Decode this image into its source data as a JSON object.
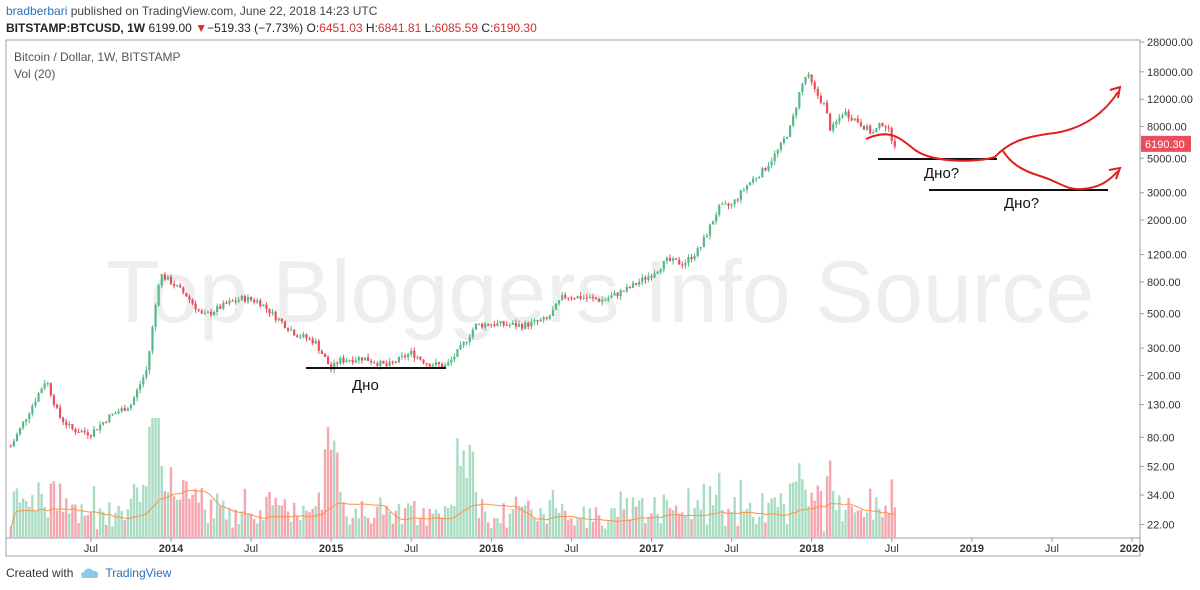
{
  "header": {
    "author": "bradberbari",
    "published": " published on TradingView.com, June 22, 2018 14:23 UTC",
    "symbol": "BITSTAMP:BTCUSD, 1W",
    "price": "6199.00",
    "change": "−519.33 (−7.73%)",
    "o_label": "O:",
    "o": "6451.03",
    "h_label": "H:",
    "h": "6841.81",
    "l_label": "L:",
    "l": "6085.59",
    "c_label": "C:",
    "c": "6190.30"
  },
  "legend": {
    "title": "Bitcoin / Dollar, 1W, BITSTAMP",
    "vol": "Vol (20)"
  },
  "watermark": "Top Bloggers Info Source",
  "footer": {
    "created": "Created with",
    "brand": "TradingView"
  },
  "colors": {
    "up": "#53b987",
    "down": "#eb4d5c",
    "vol_up": "#a9dcc3",
    "vol_down": "#f5a6ae",
    "ma": "#ff9248",
    "annotation": "#e02020",
    "price_tag": "#eb4d5c"
  },
  "chart_data": {
    "type": "candlestick",
    "scale": "log",
    "ylim": [
      18,
      28000
    ],
    "y_ticks": [
      "28000.00",
      "18000.00",
      "12000.00",
      "8000.00",
      "5000.00",
      "3000.00",
      "2000.00",
      "1200.00",
      "800.00",
      "500.00",
      "300.00",
      "200.00",
      "130.00",
      "80.00",
      "52.00",
      "34.00",
      "22.00"
    ],
    "y_tick_values": [
      28000,
      18000,
      12000,
      8000,
      5000,
      3000,
      2000,
      1200,
      800,
      500,
      300,
      200,
      130,
      80,
      52,
      34,
      22
    ],
    "x_ticks": [
      "Jul",
      "2014",
      "Jul",
      "2015",
      "Jul",
      "2016",
      "Jul",
      "2017",
      "Jul",
      "2018",
      "Jul",
      "2019",
      "Jul",
      "2020"
    ],
    "x_tick_years": [
      2013.5,
      2014.0,
      2014.5,
      2015.0,
      2015.5,
      2016.0,
      2016.5,
      2017.0,
      2017.5,
      2018.0,
      2018.5,
      2019.0,
      2019.5,
      2020.0
    ],
    "last_price_label": "6190.30",
    "last_price": 6190.3,
    "price_path": [
      [
        2013.0,
        70
      ],
      [
        2013.1,
        110
      ],
      [
        2013.22,
        190
      ],
      [
        2013.3,
        110
      ],
      [
        2013.38,
        90
      ],
      [
        2013.5,
        85
      ],
      [
        2013.62,
        110
      ],
      [
        2013.75,
        130
      ],
      [
        2013.85,
        220
      ],
      [
        2013.93,
        900
      ],
      [
        2014.0,
        800
      ],
      [
        2014.1,
        650
      ],
      [
        2014.2,
        480
      ],
      [
        2014.35,
        580
      ],
      [
        2014.45,
        630
      ],
      [
        2014.55,
        600
      ],
      [
        2014.65,
        480
      ],
      [
        2014.78,
        370
      ],
      [
        2014.9,
        330
      ],
      [
        2015.0,
        220
      ],
      [
        2015.05,
        250
      ],
      [
        2015.2,
        260
      ],
      [
        2015.35,
        230
      ],
      [
        2015.5,
        280
      ],
      [
        2015.6,
        240
      ],
      [
        2015.72,
        230
      ],
      [
        2015.82,
        310
      ],
      [
        2015.9,
        420
      ],
      [
        2016.0,
        430
      ],
      [
        2016.2,
        420
      ],
      [
        2016.35,
        460
      ],
      [
        2016.45,
        650
      ],
      [
        2016.55,
        640
      ],
      [
        2016.7,
        610
      ],
      [
        2016.85,
        720
      ],
      [
        2017.0,
        900
      ],
      [
        2017.1,
        1100
      ],
      [
        2017.2,
        1050
      ],
      [
        2017.3,
        1300
      ],
      [
        2017.42,
        2400
      ],
      [
        2017.5,
        2500
      ],
      [
        2017.6,
        3400
      ],
      [
        2017.7,
        4200
      ],
      [
        2017.8,
        5800
      ],
      [
        2017.87,
        8000
      ],
      [
        2017.93,
        14000
      ],
      [
        2017.97,
        17500
      ],
      [
        2018.02,
        13500
      ],
      [
        2018.08,
        11000
      ],
      [
        2018.12,
        7500
      ],
      [
        2018.2,
        10000
      ],
      [
        2018.3,
        8500
      ],
      [
        2018.38,
        7200
      ],
      [
        2018.45,
        8600
      ],
      [
        2018.5,
        6800
      ],
      [
        2018.52,
        6190
      ]
    ],
    "volume_ma_note": "Vol (20) moving average line"
  },
  "annotations": {
    "label1": "Дно",
    "label2": "Дно?",
    "label3": "Дно?"
  }
}
